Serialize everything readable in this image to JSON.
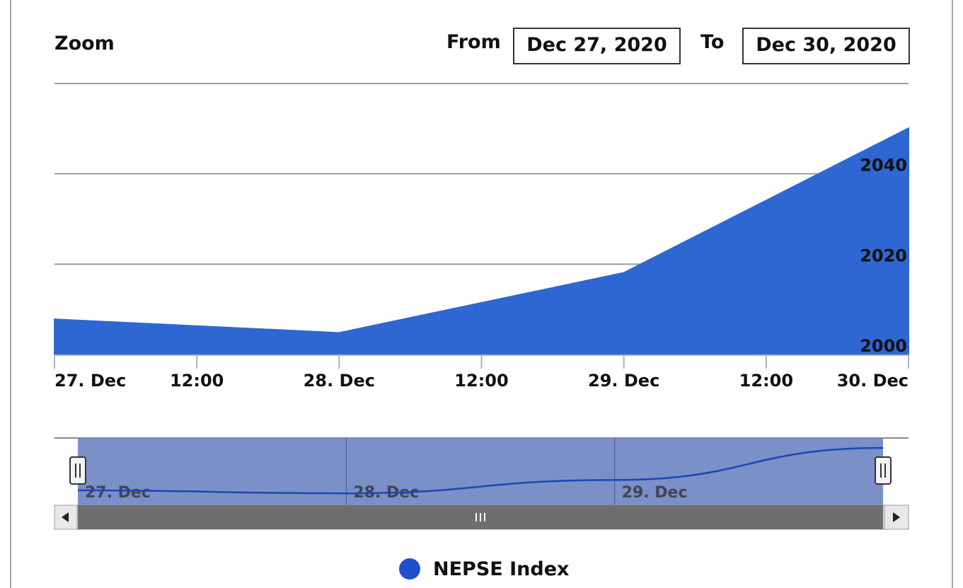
{
  "range_selector": {
    "zoom_label": "Zoom",
    "from_label": "From",
    "from_value": "Dec 27, 2020",
    "to_label": "To",
    "to_value": "Dec 30, 2020"
  },
  "colors": {
    "series_fill": "#2e67d1",
    "navigator_fill": "#7b8fc8",
    "navigator_line": "#1e45b5",
    "scrollbar": "#6e6e6e",
    "legend_marker": "#1f4fcc"
  },
  "navigator": {
    "tick_labels": [
      "27. Dec",
      "28. Dec",
      "29. Dec"
    ],
    "handle_icon": "grip-icon",
    "scroll_left_icon": "triangle-left-icon",
    "scroll_right_icon": "triangle-right-icon",
    "scroll_grip_icon": "grip-icon"
  },
  "legend": {
    "label": "NEPSE Index"
  },
  "chart_data": {
    "type": "area",
    "x": [
      "2020-12-27",
      "2020-12-28",
      "2020-12-29",
      "2020-12-30"
    ],
    "series": [
      {
        "name": "NEPSE Index",
        "values": [
          2007.8,
          2004.8,
          2018.1,
          2050.1
        ]
      }
    ],
    "xlim": [
      "2020-12-27",
      "2020-12-30"
    ],
    "x_tick_labels": [
      "27. Dec",
      "12:00",
      "28. Dec",
      "12:00",
      "29. Dec",
      "12:00",
      "30. Dec"
    ],
    "ylim": [
      2000,
      2060
    ],
    "y_tick_labels": [
      "2000",
      "2020",
      "2040"
    ],
    "y_ticks": [
      2000,
      2020,
      2040
    ],
    "y_axis_side": "right",
    "grid": true,
    "legend_position": "bottom-center"
  }
}
